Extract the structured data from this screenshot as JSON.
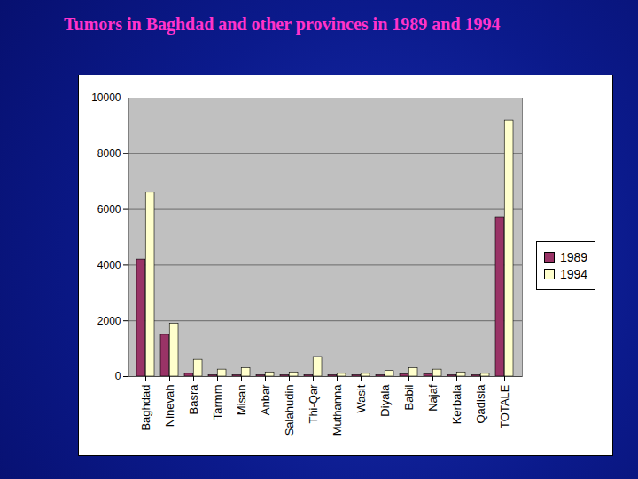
{
  "chart_data": {
    "type": "bar",
    "title": "Tumors in Baghdad and other provinces in 1989 and 1994",
    "categories": [
      "Baghdad",
      "Ninevah",
      "Basra",
      "Tarmm",
      "Misan",
      "Anbar",
      "Salahudin",
      "Thi-Qar",
      "Muthanna",
      "Wasit",
      "Diyala",
      "Babil",
      "Najaf",
      "Kerbala",
      "Qadisia",
      "TOTALE"
    ],
    "series": [
      {
        "name": "1989",
        "color": "#993366",
        "values": [
          4200,
          1500,
          100,
          50,
          50,
          50,
          50,
          50,
          50,
          50,
          50,
          80,
          80,
          50,
          50,
          5700
        ]
      },
      {
        "name": "1994",
        "color": "#ffffcc",
        "values": [
          6600,
          1900,
          600,
          250,
          300,
          150,
          150,
          700,
          100,
          100,
          200,
          300,
          250,
          150,
          100,
          9200
        ]
      }
    ],
    "ylim": [
      0,
      10000
    ],
    "yticks": [
      0,
      2000,
      4000,
      6000,
      8000,
      10000
    ],
    "grid": true,
    "legend": "right"
  }
}
